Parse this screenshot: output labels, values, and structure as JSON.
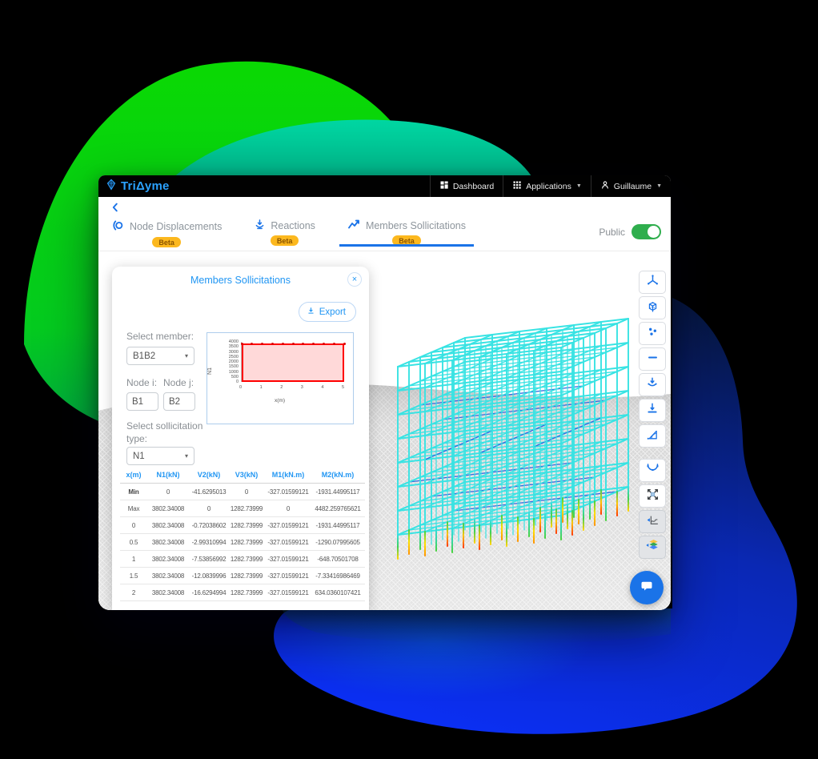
{
  "app": {
    "logo_text": "TriΔyme",
    "nav": [
      {
        "label": "Dashboard",
        "icon": "dashboard-grid-icon",
        "caret": false
      },
      {
        "label": "Applications",
        "icon": "apps-grid-icon",
        "caret": true
      },
      {
        "label": "Guillaume",
        "icon": "user-icon",
        "caret": true
      }
    ]
  },
  "tabs": [
    {
      "label": "Node Displacements",
      "badge": "Beta",
      "icon": "node-displacements-icon",
      "active": false
    },
    {
      "label": "Reactions",
      "badge": "Beta",
      "icon": "reactions-icon",
      "active": false
    },
    {
      "label": "Members Sollicitations",
      "badge": "Beta",
      "icon": "line-chart-icon",
      "active": true
    }
  ],
  "public_toggle": {
    "label": "Public",
    "state": "on"
  },
  "panel": {
    "title": "Members Sollicitations",
    "export_button": "Export",
    "select_member_label": "Select member:",
    "member_value": "B1B2",
    "node_i_label": "Node i:",
    "node_i_value": "B1",
    "node_j_label": "Node j:",
    "node_j_value": "B2",
    "select_type_label": "Select sollicitation type:",
    "type_value": "N1"
  },
  "chart_data": {
    "type": "area",
    "title": "",
    "xlabel": "x(m)",
    "ylabel": "N1",
    "x": [
      0,
      0.5,
      1,
      1.5,
      2,
      2.5,
      3,
      3.5,
      4,
      4.5,
      5
    ],
    "y": [
      3802.34008,
      3802.34008,
      3802.34008,
      3802.34008,
      3802.34008,
      3802.34008,
      3802.34008,
      3802.34008,
      3802.34008,
      3802.34008,
      3802.34008
    ],
    "xticks": [
      0,
      1,
      2,
      3,
      4,
      5
    ],
    "yticks": [
      0,
      500,
      1000,
      1500,
      2000,
      2500,
      3000,
      3500,
      4000
    ],
    "xlim": [
      0,
      5
    ],
    "ylim": [
      0,
      4000
    ],
    "grid": false,
    "legend": "none",
    "series_color": "#ff0000",
    "fill_color": "rgba(255,0,0,0.15)"
  },
  "table": {
    "columns": [
      "x(m)",
      "N1(kN)",
      "V2(kN)",
      "V3(kN)",
      "M1(kN.m)",
      "M2(kN.m)"
    ],
    "rows": [
      [
        "Min",
        "0",
        "-41.6295013",
        "0",
        "-327.01599121",
        "-1931.44995117"
      ],
      [
        "Max",
        "3802.34008",
        "0",
        "1282.73999",
        "0",
        "4482.259765621"
      ],
      [
        "0",
        "3802.34008",
        "-0.72038602",
        "1282.73999",
        "-327.01599121",
        "-1931.44995117"
      ],
      [
        "0.5",
        "3802.34008",
        "-2.99310994",
        "1282.73999",
        "-327.01599121",
        "-1290.07995605"
      ],
      [
        "1",
        "3802.34008",
        "-7.53856992",
        "1282.73999",
        "-327.01599121",
        "-648.70501708"
      ],
      [
        "1.5",
        "3802.34008",
        "-12.0839996",
        "1282.73999",
        "-327.01599121",
        "-7.33416986469"
      ],
      [
        "2",
        "3802.34008",
        "-16.6294994",
        "1282.73999",
        "-327.01599121",
        "634.0360107421"
      ]
    ]
  },
  "toolbar": {
    "buttons": [
      {
        "icon": "axes-3d-icon",
        "active": false
      },
      {
        "icon": "cube-icon",
        "active": false
      },
      {
        "icon": "nodes-icon",
        "active": false
      },
      {
        "icon": "member-line-icon",
        "active": false
      },
      {
        "icon": "load-arc-icon",
        "active": false
      },
      {
        "icon": "support-arrow-icon",
        "active": false
      },
      {
        "icon": "support-triangle-icon",
        "active": false
      },
      {
        "icon": "deformed-shape-icon",
        "active": false
      },
      {
        "icon": "expand-icon",
        "active": false
      },
      {
        "icon": "moment-diagram-icon",
        "active": true
      },
      {
        "icon": "layers-icon",
        "active": true
      }
    ]
  },
  "chat": {
    "icon": "chat-bubble-icon"
  },
  "colors": {
    "accent_blue": "#2196f3",
    "toolbar_icon_blue": "#1a73e8",
    "badge_orange": "#fcb81e",
    "toggle_green": "#2fae4d",
    "chart_red": "#ff0000",
    "building_cyan": "#38e3e3",
    "blob_green": "#08d603",
    "blob_blue": "#0b2ff2"
  }
}
